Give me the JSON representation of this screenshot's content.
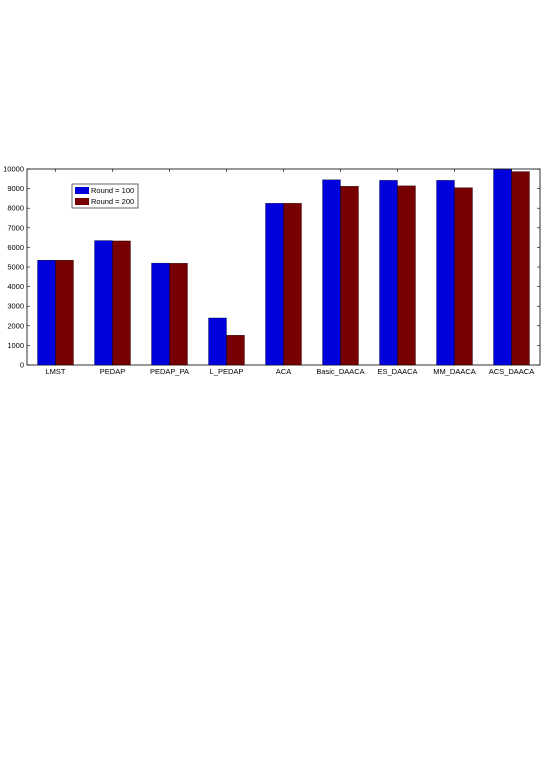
{
  "chart_data": {
    "type": "bar",
    "categories": [
      "LMST",
      "PEDAP",
      "PEDAP_PA",
      "L_PEDAP",
      "ACA",
      "Basic_DAACA",
      "ES_DAACA",
      "MM_DAACA",
      "ACS_DAACA"
    ],
    "series": [
      {
        "name": "Round = 100",
        "color": "#0000dd",
        "values": [
          5350,
          6350,
          5200,
          2400,
          8250,
          9450,
          9420,
          9420,
          9980
        ]
      },
      {
        "name": "Round = 200",
        "color": "#770000",
        "values": [
          5350,
          6330,
          5190,
          1520,
          8250,
          9120,
          9140,
          9050,
          9870
        ]
      }
    ],
    "title": "",
    "xlabel": "",
    "ylabel": "",
    "ylim": [
      0,
      10000
    ],
    "yticks": [
      "0",
      "1000",
      "2000",
      "3000",
      "4000",
      "5000",
      "6000",
      "7000",
      "8000",
      "9000",
      "10000"
    ],
    "grid": false,
    "legend_position": "top-left"
  }
}
